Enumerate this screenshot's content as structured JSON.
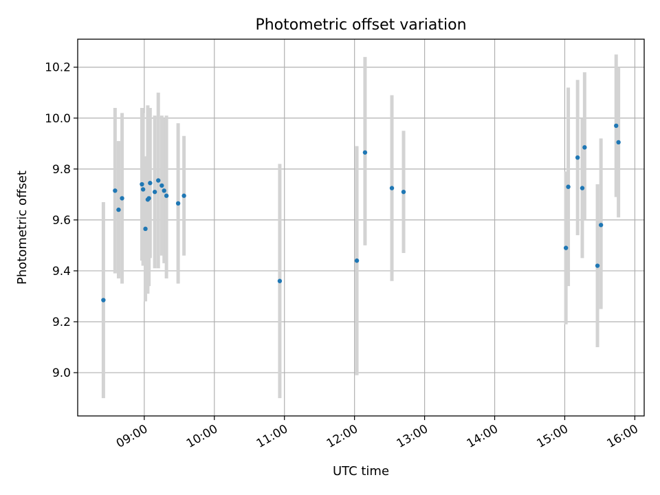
{
  "chart_data": {
    "type": "scatter",
    "title": "Photometric offset variation",
    "xlabel": "UTC time",
    "ylabel": "Photometric offset",
    "xlim": [
      "08:03",
      "16:08"
    ],
    "ylim": [
      8.83,
      10.31
    ],
    "x_ticks": [
      "09:00",
      "10:00",
      "11:00",
      "12:00",
      "13:00",
      "14:00",
      "15:00",
      "16:00"
    ],
    "y_ticks": [
      "9.0",
      "9.2",
      "9.4",
      "9.6",
      "9.8",
      "10.0",
      "10.2"
    ],
    "grid": true,
    "point_color": "#1f77b4",
    "errorbar_color": "#d3d3d3",
    "series": [
      {
        "points": [
          {
            "x": "08:25",
            "y": 9.285,
            "ylow": 8.9,
            "yhigh": 9.67
          },
          {
            "x": "08:35",
            "y": 9.715,
            "ylow": 9.39,
            "yhigh": 10.04
          },
          {
            "x": "08:38",
            "y": 9.64,
            "ylow": 9.37,
            "yhigh": 9.91
          },
          {
            "x": "08:41",
            "y": 9.685,
            "ylow": 9.35,
            "yhigh": 10.02
          },
          {
            "x": "08:58",
            "y": 9.74,
            "ylow": 9.44,
            "yhigh": 10.04
          },
          {
            "x": "08:59",
            "y": 9.72,
            "ylow": 9.42,
            "yhigh": 10.02
          },
          {
            "x": "09:01",
            "y": 9.565,
            "ylow": 9.28,
            "yhigh": 9.85
          },
          {
            "x": "09:03",
            "y": 9.68,
            "ylow": 9.31,
            "yhigh": 10.05
          },
          {
            "x": "09:04",
            "y": 9.685,
            "ylow": 9.34,
            "yhigh": 10.03
          },
          {
            "x": "09:05",
            "y": 9.745,
            "ylow": 9.45,
            "yhigh": 10.04
          },
          {
            "x": "09:09",
            "y": 9.71,
            "ylow": 9.41,
            "yhigh": 10.01
          },
          {
            "x": "09:12",
            "y": 9.755,
            "ylow": 9.41,
            "yhigh": 10.1
          },
          {
            "x": "09:15",
            "y": 9.735,
            "ylow": 9.46,
            "yhigh": 10.01
          },
          {
            "x": "09:17",
            "y": 9.715,
            "ylow": 9.43,
            "yhigh": 10.0
          },
          {
            "x": "09:19",
            "y": 9.695,
            "ylow": 9.37,
            "yhigh": 10.01
          },
          {
            "x": "09:29",
            "y": 9.665,
            "ylow": 9.35,
            "yhigh": 9.98
          },
          {
            "x": "09:34",
            "y": 9.695,
            "ylow": 9.46,
            "yhigh": 9.93
          },
          {
            "x": "10:56",
            "y": 9.36,
            "ylow": 8.9,
            "yhigh": 9.82
          },
          {
            "x": "12:02",
            "y": 9.44,
            "ylow": 8.99,
            "yhigh": 9.89
          },
          {
            "x": "12:09",
            "y": 9.865,
            "ylow": 9.5,
            "yhigh": 10.24
          },
          {
            "x": "12:32",
            "y": 9.725,
            "ylow": 9.36,
            "yhigh": 10.09
          },
          {
            "x": "12:42",
            "y": 9.71,
            "ylow": 9.47,
            "yhigh": 9.95
          },
          {
            "x": "15:01",
            "y": 9.49,
            "ylow": 9.19,
            "yhigh": 9.79
          },
          {
            "x": "15:03",
            "y": 9.73,
            "ylow": 9.34,
            "yhigh": 10.12
          },
          {
            "x": "15:11",
            "y": 9.845,
            "ylow": 9.54,
            "yhigh": 10.15
          },
          {
            "x": "15:15",
            "y": 9.725,
            "ylow": 9.45,
            "yhigh": 10.0
          },
          {
            "x": "15:17",
            "y": 9.885,
            "ylow": 9.6,
            "yhigh": 10.18
          },
          {
            "x": "15:28",
            "y": 9.42,
            "ylow": 9.1,
            "yhigh": 9.74
          },
          {
            "x": "15:31",
            "y": 9.58,
            "ylow": 9.25,
            "yhigh": 9.92
          },
          {
            "x": "15:44",
            "y": 9.97,
            "ylow": 9.69,
            "yhigh": 10.25
          },
          {
            "x": "15:46",
            "y": 9.905,
            "ylow": 9.61,
            "yhigh": 10.2
          }
        ]
      }
    ]
  }
}
